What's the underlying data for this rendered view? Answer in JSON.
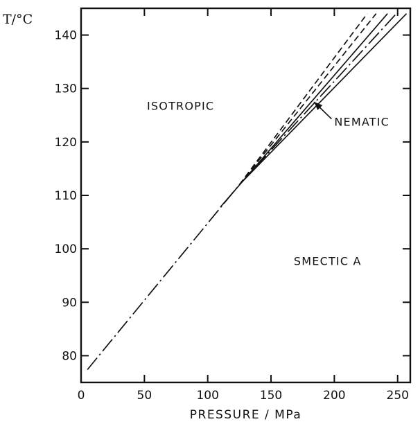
{
  "chart_data": {
    "type": "line",
    "title": "",
    "xlabel": "PRESSURE / MPa",
    "ylabel": "T/°C",
    "xlim": [
      0,
      260
    ],
    "ylim": [
      75,
      145
    ],
    "x_ticks": [
      0,
      50,
      100,
      150,
      200,
      250
    ],
    "y_ticks": [
      80,
      90,
      100,
      110,
      120,
      130,
      140
    ],
    "grid": false,
    "regions": [
      {
        "label": "ISOTROPIC",
        "x": 52,
        "y": 126
      },
      {
        "label": "SMECTIC A",
        "x": 168,
        "y": 97
      },
      {
        "label": "NEMATIC",
        "x": 200,
        "y": 123
      }
    ],
    "series": [
      {
        "style": "dash-dot",
        "x": [
          5,
          125
        ],
        "y": [
          77.4,
          112
        ]
      },
      {
        "style": "dashed",
        "x": [
          125,
          226
        ],
        "y": [
          112,
          144
        ]
      },
      {
        "style": "dashed",
        "x": [
          125,
          233
        ],
        "y": [
          112,
          144
        ]
      },
      {
        "style": "solid",
        "x": [
          110,
          242
        ],
        "y": [
          107.8,
          144
        ]
      },
      {
        "style": "dash-dot",
        "x": [
          125,
          249
        ],
        "y": [
          112,
          144
        ]
      },
      {
        "style": "solid",
        "x": [
          125,
          257
        ],
        "y": [
          112,
          144
        ]
      }
    ],
    "annotations": [
      {
        "text": "NEMATIC",
        "arrow_to": [
          184,
          127.5
        ]
      }
    ]
  }
}
